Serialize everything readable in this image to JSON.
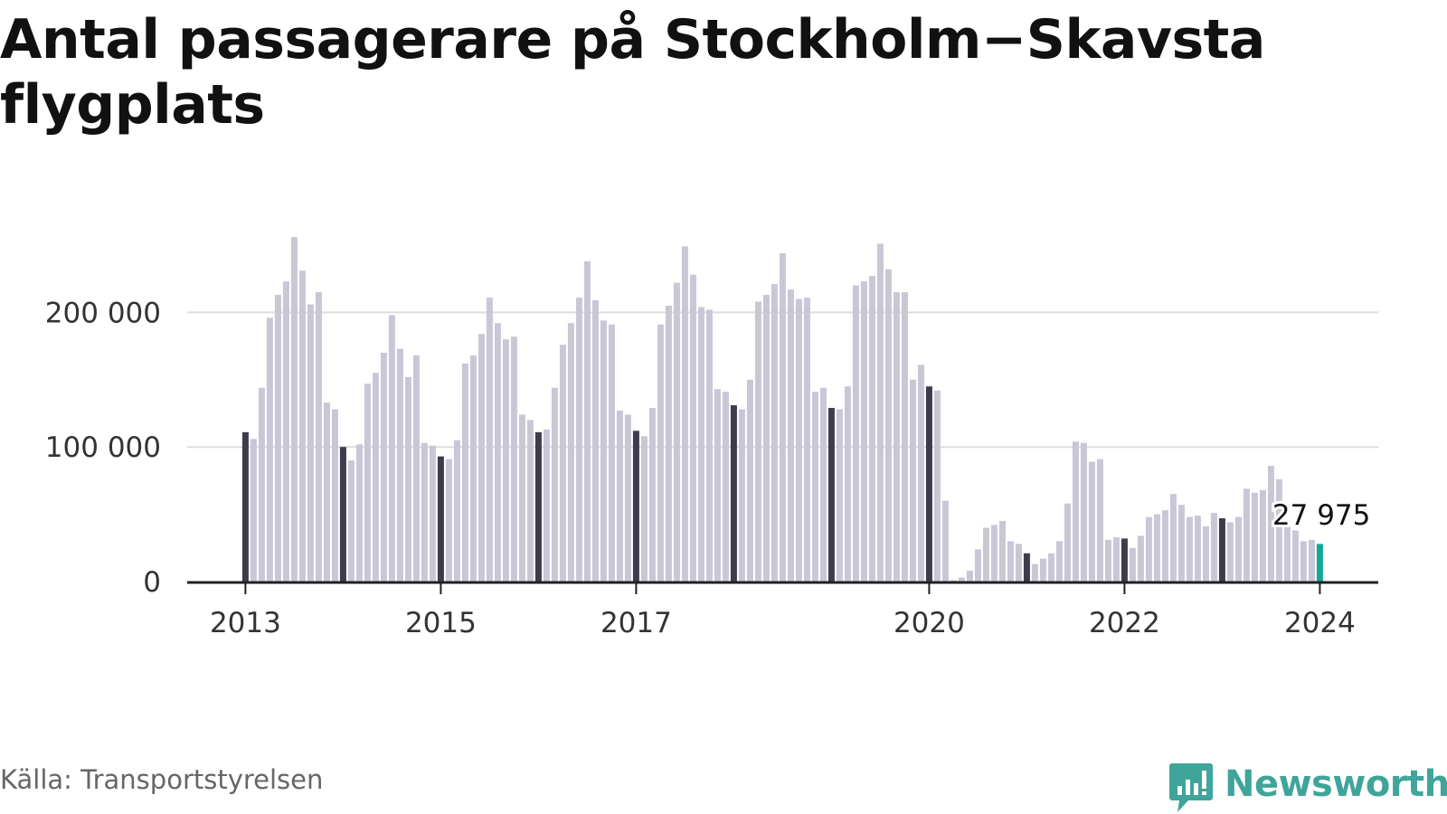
{
  "title": "Antal passagerare på Stockholm−Skavsta flygplats",
  "source": "Källa: Transportstyrelsen",
  "brand": "Newsworthy",
  "colors": {
    "bar": "#c8c7d6",
    "january_bar": "#3d3c4c",
    "latest_bar": "#12a89a",
    "grid": "#dddddd",
    "axis": "#222222",
    "brand": "#3fa59a"
  },
  "chart_data": {
    "type": "bar",
    "title": "Antal passagerare på Stockholm−Skavsta flygplats",
    "xlabel": "",
    "ylabel": "",
    "start": "2013-01",
    "frequency": "monthly",
    "ylim": [
      0,
      260000
    ],
    "yticks": [
      {
        "value": 0,
        "label": "0"
      },
      {
        "value": 100000,
        "label": "100 000"
      },
      {
        "value": 200000,
        "label": "200 000"
      }
    ],
    "xticks": [
      {
        "date": "2013-01",
        "label": "2013"
      },
      {
        "date": "2015-01",
        "label": "2015"
      },
      {
        "date": "2017-01",
        "label": "2017"
      },
      {
        "date": "2020-01",
        "label": "2020"
      },
      {
        "date": "2022-01",
        "label": "2022"
      },
      {
        "date": "2024-01",
        "label": "2024"
      }
    ],
    "grid": true,
    "highlight": "January of each year in dark color; latest month in teal",
    "annotation": {
      "date": "2024-01",
      "label": "27 975"
    },
    "values": [
      111000,
      106000,
      144000,
      196000,
      213000,
      223000,
      256000,
      231000,
      206000,
      215000,
      133000,
      128000,
      100000,
      90000,
      102000,
      147000,
      155000,
      170000,
      198000,
      173000,
      152000,
      168000,
      103000,
      101000,
      93000,
      91000,
      105000,
      162000,
      168000,
      184000,
      211000,
      192000,
      180000,
      182000,
      124000,
      120000,
      111000,
      113000,
      144000,
      176000,
      192000,
      211000,
      238000,
      209000,
      194000,
      191000,
      127000,
      124000,
      112000,
      108000,
      129000,
      191000,
      205000,
      222000,
      249000,
      228000,
      204000,
      202000,
      143000,
      141000,
      131000,
      128000,
      150000,
      208000,
      213000,
      221000,
      244000,
      217000,
      210000,
      211000,
      141000,
      144000,
      129000,
      128000,
      145000,
      220000,
      223000,
      227000,
      251000,
      232000,
      215000,
      215000,
      150000,
      161000,
      145000,
      142000,
      60000,
      1000,
      3000,
      8000,
      24000,
      40000,
      42000,
      45000,
      30000,
      28000,
      21000,
      13000,
      17000,
      21000,
      30000,
      58000,
      104000,
      103000,
      89000,
      91000,
      31000,
      33000,
      32000,
      25000,
      34000,
      48000,
      50000,
      53000,
      65000,
      57000,
      48000,
      49000,
      41000,
      51000,
      47000,
      44000,
      48000,
      69000,
      66000,
      68000,
      86000,
      76000,
      42000,
      38000,
      30000,
      31000,
      27975
    ]
  }
}
